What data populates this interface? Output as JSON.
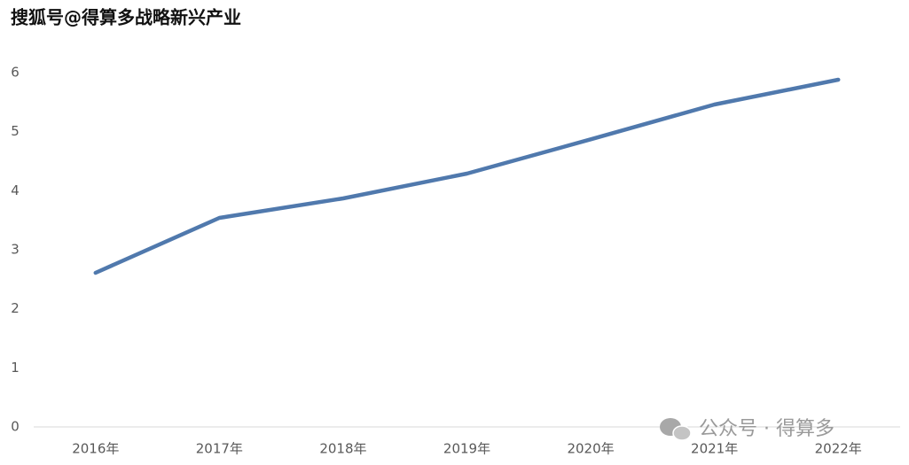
{
  "chart_data": {
    "type": "line",
    "categories": [
      "2016年",
      "2017年",
      "2018年",
      "2019年",
      "2020年",
      "2021年",
      "2022年"
    ],
    "values": [
      2.61,
      3.54,
      3.87,
      4.29,
      4.87,
      5.46,
      5.88
    ],
    "color": "#5079ad",
    "ylim": [
      0,
      6
    ],
    "yticks": [
      0,
      1,
      2,
      3,
      4,
      5,
      6
    ],
    "grid": false,
    "annotations": [
      "搜狐号@得算多战略新兴产业",
      "公众号 · 得算多"
    ]
  }
}
